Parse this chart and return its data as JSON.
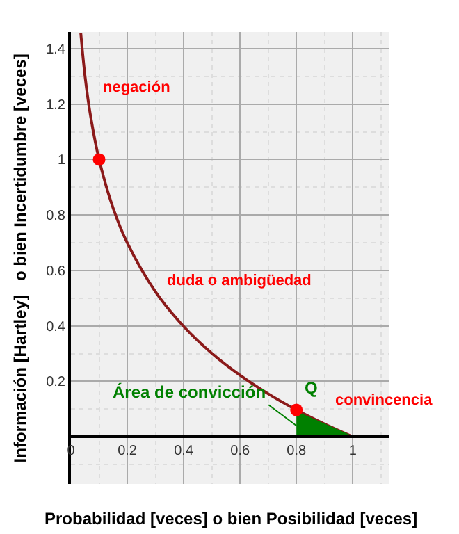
{
  "chart_data": {
    "type": "line",
    "xlabel": "Probabilidad [veces] o bien Posibilidad [veces]",
    "ylabel": "Información [Hartley]   o bien Incertidumbre [veces]",
    "xlim": [
      0,
      1.13
    ],
    "ylim": [
      -0.17,
      1.46
    ],
    "xticks": [
      0,
      0.2,
      0.4,
      0.6,
      0.8,
      1
    ],
    "yticks": [
      0.2,
      0.4,
      0.6,
      0.8,
      1,
      1.2,
      1.4
    ],
    "grid": true,
    "series": [
      {
        "color": "#8b1a1a",
        "marker": "none",
        "x": [
          0.035,
          0.05,
          0.07,
          0.1,
          0.15,
          0.2,
          0.3,
          0.4,
          0.5,
          0.6,
          0.7,
          0.8,
          0.9,
          1.0
        ],
        "values": [
          1.456,
          1.301,
          1.155,
          1,
          0.824,
          0.699,
          0.523,
          0.398,
          0.301,
          0.222,
          0.155,
          0.097,
          0.046,
          0
        ]
      },
      {
        "type": "area",
        "color": "#008000",
        "x": [
          0.8,
          1.0
        ],
        "values": [
          0.09,
          0
        ]
      },
      {
        "type": "scatter",
        "color": "#ff0000",
        "marker": "circle",
        "x": [
          0.1,
          0.8
        ],
        "values": [
          1,
          0.097
        ]
      }
    ],
    "annotations": [
      "negación",
      "duda o ambigüedad",
      {
        "text": "Q",
        "x": 0.8,
        "y": 0.097
      },
      "convincencia",
      {
        "text": "Área de convicción",
        "x": 0.8,
        "y": 0.04
      }
    ]
  }
}
